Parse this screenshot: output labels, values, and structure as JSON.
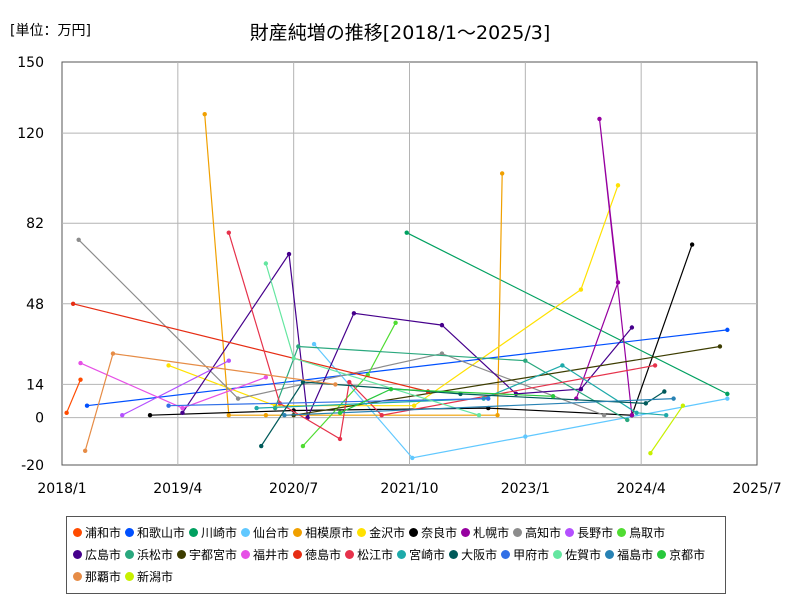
{
  "chart_data": {
    "type": "line",
    "title": "財産純増の推移[2018/1～2025/3]",
    "unit_label": "[単位：万円]",
    "xlabel": "",
    "ylabel": "",
    "xlim": [
      2018.0,
      2025.5
    ],
    "ylim": [
      -20,
      150
    ],
    "x_ticks": [
      {
        "value": 2018.0,
        "label": "2018/1"
      },
      {
        "value": 2019.25,
        "label": "2019/4"
      },
      {
        "value": 2020.5,
        "label": "2020/7"
      },
      {
        "value": 2021.75,
        "label": "2021/10"
      },
      {
        "value": 2023.0,
        "label": "2023/1"
      },
      {
        "value": 2024.25,
        "label": "2024/4"
      },
      {
        "value": 2025.5,
        "label": "2025/7"
      }
    ],
    "y_ticks": [
      {
        "value": 150,
        "label": "150"
      },
      {
        "value": 120,
        "label": "120"
      },
      {
        "value": 82,
        "label": "82"
      },
      {
        "value": 48,
        "label": "48"
      },
      {
        "value": 14,
        "label": "14"
      },
      {
        "value": 0,
        "label": "0"
      },
      {
        "value": -20,
        "label": "-20"
      }
    ],
    "grid": true,
    "legend_position": "bottom",
    "series": [
      {
        "name": "浦和市",
        "color": "#ff4b00",
        "x": [
          2018.05,
          2018.2
        ],
        "y": [
          2,
          16
        ]
      },
      {
        "name": "和歌山市",
        "color": "#0050ff",
        "x": [
          2018.27,
          2025.18
        ],
        "y": [
          5,
          37
        ]
      },
      {
        "name": "川崎市",
        "color": "#00a060",
        "x": [
          2021.72,
          2025.18
        ],
        "y": [
          78,
          10
        ]
      },
      {
        "name": "仙台市",
        "color": "#60c8ff",
        "x": [
          2020.72,
          2021.78,
          2023.0,
          2025.18
        ],
        "y": [
          31,
          -17,
          -8,
          8
        ]
      },
      {
        "name": "相模原市",
        "color": "#f0a000",
        "x": [
          2019.54,
          2019.8,
          2020.2,
          2022.7,
          2022.75
        ],
        "y": [
          128,
          1,
          1,
          1,
          103
        ]
      },
      {
        "name": "金沢市",
        "color": "#ffe100",
        "x": [
          2019.15,
          2020.3,
          2021.8,
          2023.6,
          2024.0
        ],
        "y": [
          22,
          5,
          5,
          54,
          98
        ]
      },
      {
        "name": "奈良市",
        "color": "#000000",
        "x": [
          2018.95,
          2020.5,
          2022.6,
          2024.15,
          2024.8
        ],
        "y": [
          1,
          3,
          4,
          1,
          73
        ]
      },
      {
        "name": "札幌市",
        "color": "#9600a0",
        "x": [
          2024.15,
          2023.8,
          2024.0,
          2023.55
        ],
        "y": [
          1,
          126,
          57,
          8
        ]
      },
      {
        "name": "高知市",
        "color": "#8c8c8c",
        "x": [
          2018.18,
          2019.9,
          2022.1,
          2023.85
        ],
        "y": [
          75,
          8,
          27,
          1
        ]
      },
      {
        "name": "長野市",
        "color": "#b450ff",
        "x": [
          2018.65,
          2019.8
        ],
        "y": [
          1,
          24
        ]
      },
      {
        "name": "鳥取市",
        "color": "#50dc32",
        "x": [
          2020.6,
          2021.3,
          2021.6
        ],
        "y": [
          -12,
          18,
          40
        ]
      },
      {
        "name": "広島市",
        "color": "#46008c",
        "x": [
          2019.3,
          2020.45,
          2020.65,
          2021.15,
          2022.1,
          2022.9,
          2023.6,
          2024.15
        ],
        "y": [
          2,
          69,
          0,
          44,
          39,
          10,
          12,
          38
        ]
      },
      {
        "name": "浜松市",
        "color": "#2aa87e",
        "x": [
          2020.3,
          2020.55,
          2023.0,
          2024.1
        ],
        "y": [
          4,
          30,
          24,
          -1
        ]
      },
      {
        "name": "宇都宮市",
        "color": "#3c3c00",
        "x": [
          2020.5,
          2025.1
        ],
        "y": [
          1,
          30
        ]
      },
      {
        "name": "福井市",
        "color": "#e650e6",
        "x": [
          2018.2,
          2019.3,
          2020.2
        ],
        "y": [
          23,
          4,
          17
        ]
      },
      {
        "name": "徳島市",
        "color": "#e62d14",
        "x": [
          2018.12,
          2021.95
        ],
        "y": [
          48,
          11
        ]
      },
      {
        "name": "松江市",
        "color": "#e6324b",
        "x": [
          2019.8,
          2020.35,
          2021.0,
          2021.1,
          2021.45,
          2024.4
        ],
        "y": [
          78,
          6,
          -9,
          15,
          1,
          22
        ]
      },
      {
        "name": "宮崎市",
        "color": "#1eaaaa",
        "x": [
          2020.1,
          2022.55,
          2023.4,
          2024.2,
          2024.52
        ],
        "y": [
          4,
          8,
          22,
          2,
          1
        ]
      },
      {
        "name": "大阪市",
        "color": "#005a5a",
        "x": [
          2020.15,
          2020.6,
          2022.3,
          2024.3,
          2024.5
        ],
        "y": [
          -12,
          15,
          10,
          6,
          11
        ]
      },
      {
        "name": "甲府市",
        "color": "#3270e6",
        "x": [
          2019.15,
          2022.6
        ],
        "y": [
          5,
          8
        ]
      },
      {
        "name": "佐賀市",
        "color": "#64e6a0",
        "x": [
          2020.2,
          2020.5,
          2022.5
        ],
        "y": [
          65,
          25,
          1
        ]
      },
      {
        "name": "福島市",
        "color": "#2882b4",
        "x": [
          2020.4,
          2024.6
        ],
        "y": [
          1,
          8
        ]
      },
      {
        "name": "京都市",
        "color": "#28c83c",
        "x": [
          2021.0,
          2021.55,
          2023.3
        ],
        "y": [
          2,
          12,
          9
        ]
      },
      {
        "name": "那覇市",
        "color": "#e68c46",
        "x": [
          2018.25,
          2018.55,
          2020.95
        ],
        "y": [
          -14,
          27,
          14
        ]
      },
      {
        "name": "新潟市",
        "color": "#c8f000",
        "x": [
          2024.35,
          2024.7
        ],
        "y": [
          -15,
          5
        ]
      }
    ]
  }
}
